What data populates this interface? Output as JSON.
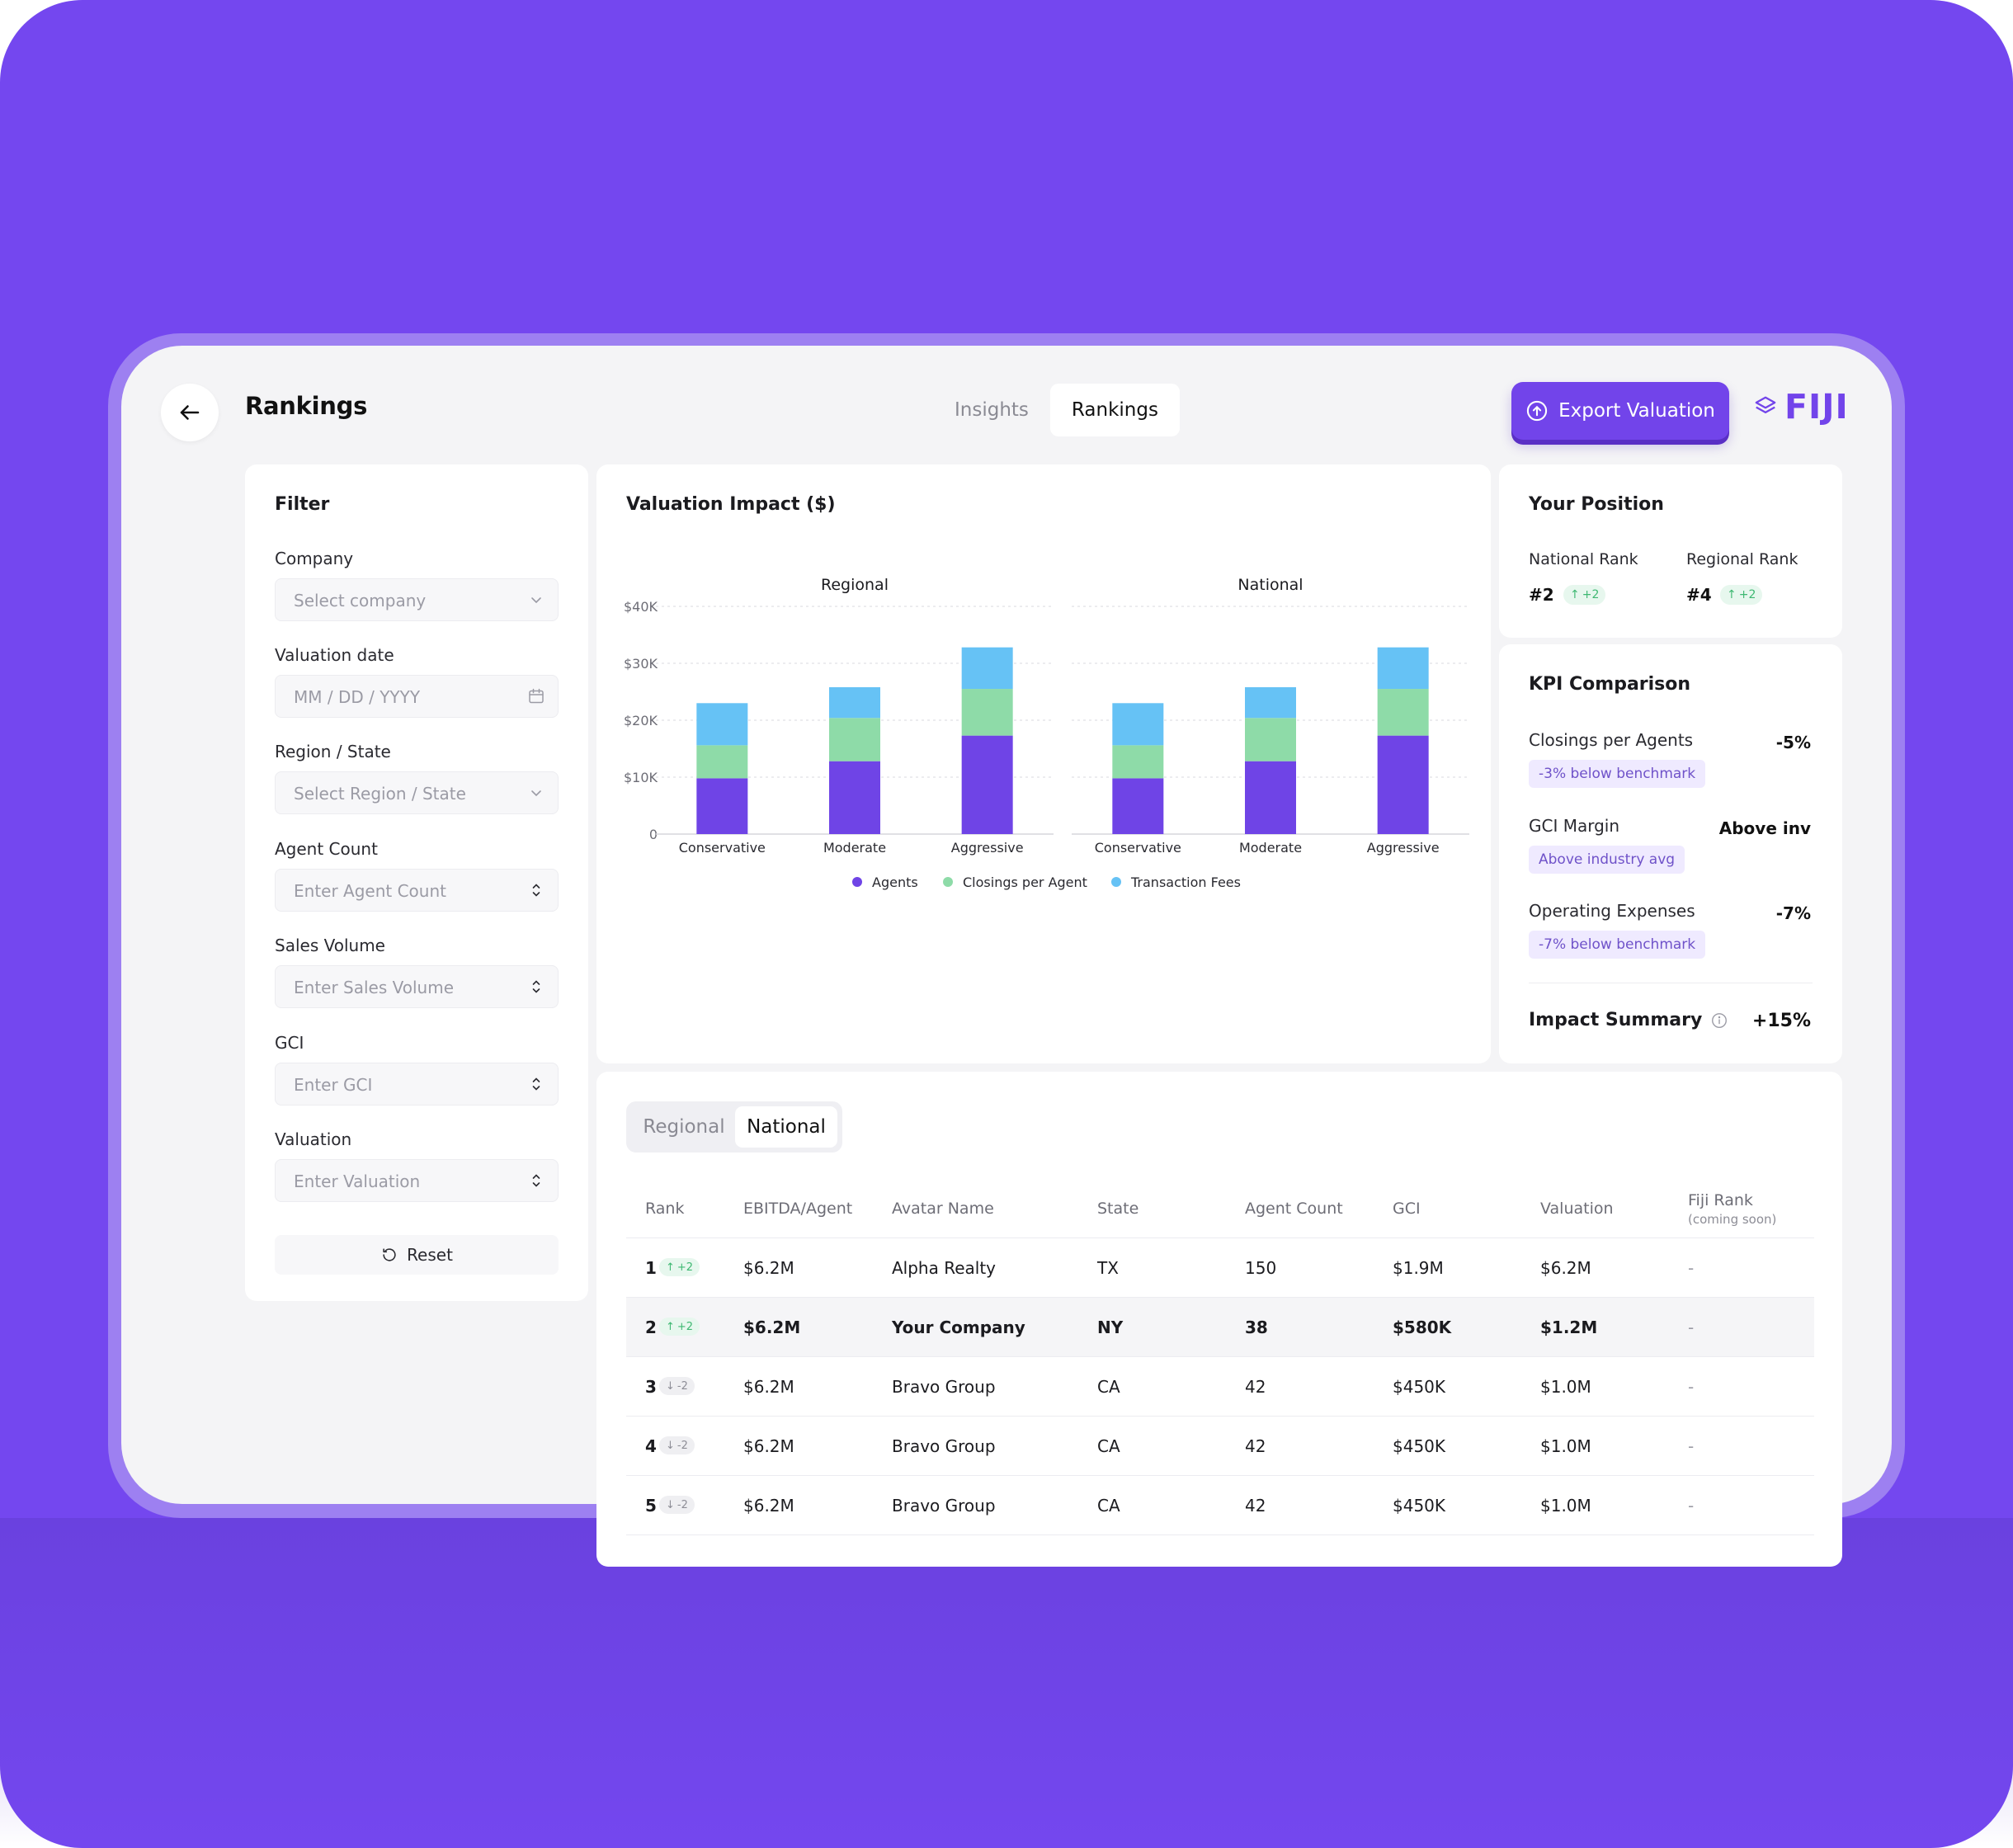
{
  "header": {
    "title": "Rankings",
    "tabs": [
      {
        "label": "Insights",
        "active": false
      },
      {
        "label": "Rankings",
        "active": true
      }
    ],
    "export_label": "Export Valuation",
    "logo_text": "FIJI"
  },
  "filter": {
    "title": "Filter",
    "fields": [
      {
        "label": "Company",
        "placeholder": "Select company",
        "icon": "chevron-down-icon"
      },
      {
        "label": "Valuation date",
        "placeholder": "MM / DD / YYYY",
        "icon": "calendar-icon"
      },
      {
        "label": "Region / State",
        "placeholder": "Select Region / State",
        "icon": "chevron-down-icon"
      },
      {
        "label": "Agent Count",
        "placeholder": "Enter Agent Count",
        "icon": "stepper-icon"
      },
      {
        "label": "Sales Volume",
        "placeholder": "Enter Sales Volume",
        "icon": "stepper-icon"
      },
      {
        "label": "GCI",
        "placeholder": "Enter GCI",
        "icon": "stepper-icon"
      },
      {
        "label": "Valuation",
        "placeholder": "Enter Valuation",
        "icon": "stepper-icon"
      }
    ],
    "reset_label": "Reset"
  },
  "chart_data": {
    "type": "bar",
    "stacked": true,
    "title": "Valuation Impact ($)",
    "ylim": [
      0,
      40000
    ],
    "yticks": [
      0,
      10000,
      20000,
      30000,
      40000
    ],
    "ytick_labels": [
      "0",
      "$10K",
      "$20K",
      "$30K",
      "$40K"
    ],
    "grid": true,
    "legend_position": "bottom",
    "colors": {
      "Agents": "#6f44e6",
      "Closings per Agent": "#8edba8",
      "Transaction Fees": "#66c2f5"
    },
    "panels": [
      {
        "title": "Regional",
        "categories": [
          "Conservative",
          "Moderate",
          "Aggressive"
        ],
        "series": [
          {
            "name": "Agents",
            "values": [
              9800,
              12800,
              17300
            ]
          },
          {
            "name": "Closings per Agent",
            "values": [
              5800,
              7600,
              8200
            ]
          },
          {
            "name": "Transaction Fees",
            "values": [
              7400,
              5400,
              7300
            ]
          }
        ]
      },
      {
        "title": "National",
        "categories": [
          "Conservative",
          "Moderate",
          "Aggressive"
        ],
        "series": [
          {
            "name": "Agents",
            "values": [
              9800,
              12800,
              17300
            ]
          },
          {
            "name": "Closings per Agent",
            "values": [
              5800,
              7600,
              8200
            ]
          },
          {
            "name": "Transaction Fees",
            "values": [
              7400,
              5400,
              7300
            ]
          }
        ]
      }
    ]
  },
  "position": {
    "title": "Your Position",
    "national": {
      "label": "National Rank",
      "value": "#2",
      "change": "+2"
    },
    "regional": {
      "label": "Regional Rank",
      "value": "#4",
      "change": "+2"
    }
  },
  "kpi": {
    "title": "KPI Comparison",
    "items": [
      {
        "name": "Closings per Agents",
        "value": "-5%",
        "badge": "-3% below benchmark"
      },
      {
        "name": "GCI Margin",
        "value": "Above inv",
        "badge": "Above industry avg"
      },
      {
        "name": "Operating Expenses",
        "value": "-7%",
        "badge": "-7% below benchmark"
      }
    ],
    "summary_label": "Impact Summary",
    "summary_value": "+15%"
  },
  "table": {
    "segments": [
      {
        "label": "Regional",
        "active": false
      },
      {
        "label": "National",
        "active": true
      }
    ],
    "columns": [
      "Rank",
      "EBITDA/Agent",
      "Avatar Name",
      "State",
      "Agent Count",
      "GCI",
      "Valuation",
      "Fiji Rank"
    ],
    "fiji_rank_note": "(coming soon)",
    "rows": [
      {
        "rank": "1",
        "change": "+2",
        "dir": "up",
        "ebitda": "$6.2M",
        "name": "Alpha Realty",
        "state": "TX",
        "agents": "150",
        "gci": "$1.9M",
        "valuation": "$6.2M",
        "fiji": "-",
        "highlight": false
      },
      {
        "rank": "2",
        "change": "+2",
        "dir": "up",
        "ebitda": "$6.2M",
        "name": "Your Company",
        "state": "NY",
        "agents": "38",
        "gci": "$580K",
        "valuation": "$1.2M",
        "fiji": "-",
        "highlight": true
      },
      {
        "rank": "3",
        "change": "-2",
        "dir": "down",
        "ebitda": "$6.2M",
        "name": "Bravo Group",
        "state": "CA",
        "agents": "42",
        "gci": "$450K",
        "valuation": "$1.0M",
        "fiji": "-",
        "highlight": false
      },
      {
        "rank": "4",
        "change": "-2",
        "dir": "down",
        "ebitda": "$6.2M",
        "name": "Bravo Group",
        "state": "CA",
        "agents": "42",
        "gci": "$450K",
        "valuation": "$1.0M",
        "fiji": "-",
        "highlight": false
      },
      {
        "rank": "5",
        "change": "-2",
        "dir": "down",
        "ebitda": "$6.2M",
        "name": "Bravo Group",
        "state": "CA",
        "agents": "42",
        "gci": "$450K",
        "valuation": "$1.0M",
        "fiji": "-",
        "highlight": false
      }
    ]
  }
}
